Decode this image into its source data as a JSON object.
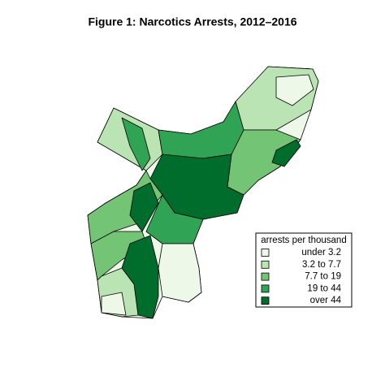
{
  "title": "Figure 1: Narcotics Arrests, 2012–2016",
  "legend": {
    "title": "arrests per thousand",
    "items": [
      {
        "label": "under 3.2",
        "color": "#edf8e9"
      },
      {
        "label": "3.2 to 7.7",
        "color": "#bae4b3"
      },
      {
        "label": "7.7 to 19",
        "color": "#74c476"
      },
      {
        "label": "19 to 44",
        "color": "#31a354"
      },
      {
        "label": "over 44",
        "color": "#006d2c"
      }
    ]
  }
}
